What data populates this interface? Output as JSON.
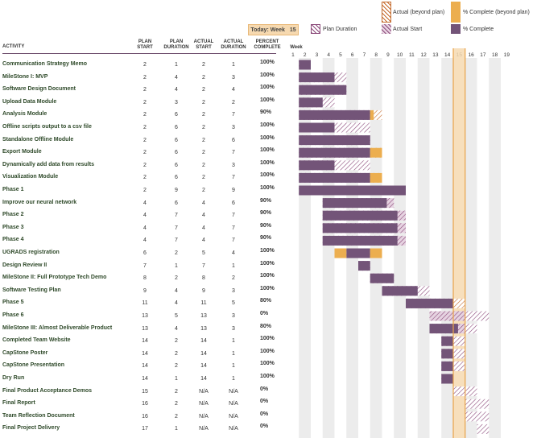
{
  "legend": {
    "today_label": "Today: Week",
    "today_value": "15",
    "plan_duration": "Plan Duration",
    "actual_start": "Actual Start",
    "pct_complete": "% Complete",
    "actual_beyond": "Actual (beyond plan)",
    "pct_beyond": "% Complete (beyond plan)"
  },
  "headers": {
    "activity": "ACTIVITY",
    "plan_start": [
      "PLAN",
      "START"
    ],
    "plan_duration": [
      "PLAN",
      "DURATION"
    ],
    "actual_start": [
      "ACTUAL",
      "START"
    ],
    "actual_duration": [
      "ACTUAL",
      "DURATION"
    ],
    "percent_complete": [
      "PERCENT",
      "COMPLETE"
    ],
    "week": "Week"
  },
  "colors": {
    "complete": "#735478",
    "beyond_complete": "#ecae4f",
    "today_highlight": "#f6d9b0",
    "today_border": "#e8a34a",
    "label_text": "#2f4a2a"
  },
  "chart_data": {
    "type": "gantt",
    "title": "",
    "xlabel": "Week",
    "today_week": 15,
    "periods": [
      1,
      2,
      3,
      4,
      5,
      6,
      7,
      8,
      9,
      10,
      11,
      12,
      13,
      14,
      15,
      16,
      17,
      18,
      19
    ],
    "tasks": [
      {
        "activity": "Communication Strategy Memo",
        "plan_start": "2",
        "plan_duration": "1",
        "actual_start": "2",
        "actual_duration": "1",
        "percent": "100%"
      },
      {
        "activity": "MileStone I: MVP",
        "plan_start": "2",
        "plan_duration": "4",
        "actual_start": "2",
        "actual_duration": "3",
        "percent": "100%"
      },
      {
        "activity": "Software Design Document",
        "plan_start": "2",
        "plan_duration": "4",
        "actual_start": "2",
        "actual_duration": "4",
        "percent": "100%"
      },
      {
        "activity": "Upload Data Module",
        "plan_start": "2",
        "plan_duration": "3",
        "actual_start": "2",
        "actual_duration": "2",
        "percent": "100%"
      },
      {
        "activity": "Analysis Module",
        "plan_start": "2",
        "plan_duration": "6",
        "actual_start": "2",
        "actual_duration": "7",
        "percent": "90%"
      },
      {
        "activity": "Offline scripts output to a csv file",
        "plan_start": "2",
        "plan_duration": "6",
        "actual_start": "2",
        "actual_duration": "3",
        "percent": "100%"
      },
      {
        "activity": "Standalone Offline Module",
        "plan_start": "2",
        "plan_duration": "6",
        "actual_start": "2",
        "actual_duration": "6",
        "percent": "100%"
      },
      {
        "activity": "Export Module",
        "plan_start": "2",
        "plan_duration": "6",
        "actual_start": "2",
        "actual_duration": "7",
        "percent": "100%"
      },
      {
        "activity": "Dynamically add data from results",
        "plan_start": "2",
        "plan_duration": "6",
        "actual_start": "2",
        "actual_duration": "3",
        "percent": "100%"
      },
      {
        "activity": "Visualization Module",
        "plan_start": "2",
        "plan_duration": "6",
        "actual_start": "2",
        "actual_duration": "7",
        "percent": "100%"
      },
      {
        "activity": "Phase 1",
        "plan_start": "2",
        "plan_duration": "9",
        "actual_start": "2",
        "actual_duration": "9",
        "percent": "100%"
      },
      {
        "activity": "Improve our neural network",
        "plan_start": "4",
        "plan_duration": "6",
        "actual_start": "4",
        "actual_duration": "6",
        "percent": "90%"
      },
      {
        "activity": "Phase 2",
        "plan_start": "4",
        "plan_duration": "7",
        "actual_start": "4",
        "actual_duration": "7",
        "percent": "90%"
      },
      {
        "activity": "Phase 3",
        "plan_start": "4",
        "plan_duration": "7",
        "actual_start": "4",
        "actual_duration": "7",
        "percent": "90%"
      },
      {
        "activity": "Phase 4",
        "plan_start": "4",
        "plan_duration": "7",
        "actual_start": "4",
        "actual_duration": "7",
        "percent": "90%"
      },
      {
        "activity": "UGRADS registration",
        "plan_start": "6",
        "plan_duration": "2",
        "actual_start": "5",
        "actual_duration": "4",
        "percent": "100%"
      },
      {
        "activity": "Design Review II",
        "plan_start": "7",
        "plan_duration": "1",
        "actual_start": "7",
        "actual_duration": "1",
        "percent": "100%"
      },
      {
        "activity": "MileStone II: Full Prototype Tech Demo",
        "plan_start": "8",
        "plan_duration": "2",
        "actual_start": "8",
        "actual_duration": "2",
        "percent": "100%"
      },
      {
        "activity": "Software Testing Plan",
        "plan_start": "9",
        "plan_duration": "4",
        "actual_start": "9",
        "actual_duration": "3",
        "percent": "100%"
      },
      {
        "activity": "Phase 5",
        "plan_start": "11",
        "plan_duration": "4",
        "actual_start": "11",
        "actual_duration": "5",
        "percent": "80%"
      },
      {
        "activity": "Phase 6",
        "plan_start": "13",
        "plan_duration": "5",
        "actual_start": "13",
        "actual_duration": "3",
        "percent": "0%"
      },
      {
        "activity": "MileStone III: Almost Deliverable Product",
        "plan_start": "13",
        "plan_duration": "4",
        "actual_start": "13",
        "actual_duration": "3",
        "percent": "80%"
      },
      {
        "activity": "Completed Team Website",
        "plan_start": "14",
        "plan_duration": "2",
        "actual_start": "14",
        "actual_duration": "1",
        "percent": "100%"
      },
      {
        "activity": "CapStone Poster",
        "plan_start": "14",
        "plan_duration": "2",
        "actual_start": "14",
        "actual_duration": "1",
        "percent": "100%"
      },
      {
        "activity": "CapStone Presentation",
        "plan_start": "14",
        "plan_duration": "2",
        "actual_start": "14",
        "actual_duration": "1",
        "percent": "100%"
      },
      {
        "activity": "Dry Run",
        "plan_start": "14",
        "plan_duration": "1",
        "actual_start": "14",
        "actual_duration": "1",
        "percent": "100%"
      },
      {
        "activity": "Final Product Acceptance Demos",
        "plan_start": "15",
        "plan_duration": "2",
        "actual_start": "N/A",
        "actual_duration": "N/A",
        "percent": "0%"
      },
      {
        "activity": "Final Report",
        "plan_start": "16",
        "plan_duration": "2",
        "actual_start": "N/A",
        "actual_duration": "N/A",
        "percent": "0%"
      },
      {
        "activity": "Team Reflection Document",
        "plan_start": "16",
        "plan_duration": "2",
        "actual_start": "N/A",
        "actual_duration": "N/A",
        "percent": "0%"
      },
      {
        "activity": "Final Project Delivery",
        "plan_start": "17",
        "plan_duration": "1",
        "actual_start": "N/A",
        "actual_duration": "N/A",
        "percent": "0%"
      }
    ]
  }
}
